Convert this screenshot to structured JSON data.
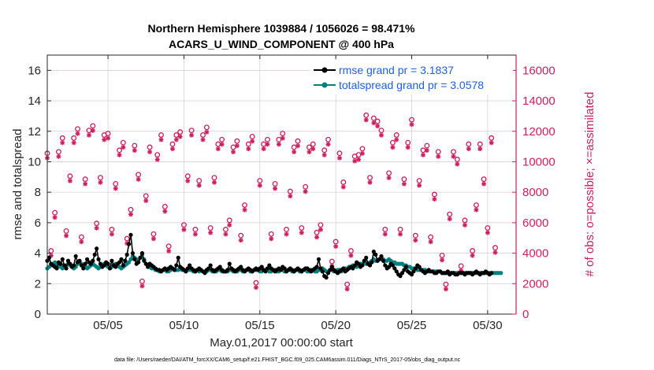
{
  "chart_data": {
    "type": "line",
    "title_line1": "Northern Hemisphere 1039884 / 1056026 = 98.471%",
    "title_line2": "ACARS_U_WIND_COMPONENT @ 400 hPa",
    "xlabel": "May.01,2017 00:00:00 start",
    "ylabel_left": "rmse and totalspread",
    "ylabel_right": "# of obs: o=possible; ×=assimilated",
    "footnote": "data file: /Users/raeder/DAI/ATM_forcXX/CAM6_setup/f.e21.FHIST_BGC.f09_025.CAM6assim.011/Diags_NTrS_2017-05/obs_diag_output.nc",
    "xlim": [
      1,
      31.875
    ],
    "x_ticks": [
      {
        "value": 5,
        "label": "05/05"
      },
      {
        "value": 10,
        "label": "05/10"
      },
      {
        "value": 15,
        "label": "05/15"
      },
      {
        "value": 20,
        "label": "05/20"
      },
      {
        "value": 25,
        "label": "05/25"
      },
      {
        "value": 30,
        "label": "05/30"
      }
    ],
    "ylim_left": [
      0,
      17
    ],
    "yticks_left": [
      "0",
      "2",
      "4",
      "6",
      "8",
      "10",
      "12",
      "14",
      "16"
    ],
    "ylim_right": [
      0,
      17000
    ],
    "yticks_right": [
      "0",
      "2000",
      "4000",
      "6000",
      "8000",
      "10000",
      "12000",
      "14000",
      "16000"
    ],
    "grid": true,
    "legend_position": "top-right",
    "colors": {
      "rmse": "#000000",
      "totalspread": "#008080",
      "obs": "#cc1f5a",
      "legend_text": "#1f5fd9",
      "grid": "#d9c7d1"
    },
    "series": [
      {
        "name": "rmse grand pr = 3.1837",
        "key": "rmse",
        "samples_per_day": 8,
        "values": [
          3.5,
          3.7,
          3.3,
          3.2,
          3.1,
          3.0,
          3.4,
          3.3,
          3.6,
          3.2,
          3.0,
          3.5,
          3.3,
          3.1,
          3.2,
          3.8,
          3.4,
          3.5,
          3.2,
          3.0,
          3.3,
          3.6,
          3.4,
          3.3,
          3.5,
          3.9,
          4.3,
          3.6,
          3.3,
          3.1,
          3.2,
          3.4,
          3.3,
          3.0,
          3.5,
          3.2,
          3.1,
          3.3,
          3.4,
          3.6,
          3.2,
          3.5,
          3.9,
          4.6,
          5.2,
          4.0,
          3.6,
          3.3,
          3.4,
          3.7,
          4.0,
          3.5,
          3.3,
          3.1,
          3.3,
          3.2,
          3.1,
          3.0,
          2.9,
          2.9,
          2.8,
          2.9,
          3.0,
          2.9,
          3.0,
          3.1,
          3.0,
          2.9,
          3.2,
          3.7,
          3.1,
          3.0,
          2.9,
          2.8,
          3.0,
          3.2,
          3.0,
          2.9,
          2.8,
          2.9,
          3.0,
          2.9,
          2.8,
          2.7,
          2.9,
          3.0,
          3.2,
          2.9,
          2.8,
          2.9,
          3.0,
          3.1,
          2.9,
          2.8,
          2.8,
          2.9,
          3.3,
          3.0,
          2.9,
          2.8,
          2.9,
          3.0,
          3.1,
          2.9,
          2.8,
          2.9,
          3.0,
          2.9,
          2.8,
          2.9,
          3.0,
          2.9,
          3.0,
          3.1,
          2.9,
          2.8,
          3.0,
          3.2,
          3.0,
          2.9,
          2.8,
          2.9,
          3.0,
          2.9,
          3.1,
          3.0,
          2.8,
          2.9,
          3.0,
          2.9,
          2.8,
          2.9,
          3.0,
          2.9,
          2.8,
          2.9,
          3.0,
          3.0,
          2.9,
          2.8,
          2.9,
          3.0,
          3.1,
          3.6,
          3.0,
          2.8,
          2.5,
          2.4,
          2.7,
          2.9,
          3.1,
          2.9,
          2.8,
          2.7,
          2.8,
          2.9,
          3.0,
          2.8,
          2.9,
          3.0,
          3.1,
          3.0,
          3.2,
          3.4,
          3.3,
          3.1,
          3.2,
          3.5,
          3.7,
          3.3,
          3.2,
          3.4,
          4.1,
          3.9,
          3.5,
          3.6,
          3.8,
          3.5,
          3.2,
          3.0,
          3.1,
          3.3,
          3.2,
          3.0,
          2.8,
          2.6,
          2.5,
          2.7,
          2.9,
          3.1,
          2.8,
          2.7,
          2.6,
          2.8,
          3.0,
          3.2,
          3.1,
          2.9,
          2.8,
          2.7,
          2.8,
          2.9,
          2.8,
          2.8,
          2.7,
          2.7,
          2.8,
          2.8,
          2.7,
          2.7,
          2.7,
          2.8,
          2.6,
          2.7,
          2.7,
          2.6,
          2.6,
          2.7,
          2.7,
          2.7,
          2.6,
          2.7,
          2.7,
          2.7,
          2.6,
          2.7,
          2.8,
          2.7,
          2.6,
          2.7,
          2.7,
          2.8,
          2.7,
          2.6,
          2.7
        ]
      },
      {
        "name": "totalspread grand pr = 3.0578",
        "key": "totalspread",
        "samples_per_day": 8,
        "values": [
          3.0,
          3.1,
          3.2,
          3.3,
          3.4,
          3.3,
          3.2,
          3.1,
          3.0,
          3.1,
          3.2,
          3.3,
          3.2,
          3.1,
          3.0,
          3.1,
          3.3,
          3.4,
          3.3,
          3.2,
          3.1,
          3.0,
          3.1,
          3.2,
          3.3,
          3.2,
          3.1,
          3.0,
          3.1,
          3.2,
          3.3,
          3.2,
          3.1,
          3.0,
          3.1,
          3.2,
          3.3,
          3.2,
          3.1,
          3.0,
          3.1,
          3.2,
          3.3,
          3.4,
          3.6,
          3.8,
          3.7,
          3.6,
          3.5,
          3.7,
          3.9,
          3.6,
          3.3,
          3.2,
          3.1,
          3.0,
          3.0,
          2.9,
          2.9,
          2.8,
          2.8,
          2.9,
          2.9,
          2.8,
          2.8,
          2.9,
          3.0,
          2.9,
          2.9,
          2.9,
          3.0,
          2.9,
          2.9,
          2.8,
          2.9,
          2.9,
          2.9,
          2.8,
          2.8,
          2.9,
          2.8,
          2.9,
          2.8,
          2.8,
          2.8,
          2.9,
          2.9,
          2.8,
          2.8,
          2.8,
          2.9,
          2.9,
          2.8,
          2.8,
          2.8,
          2.8,
          2.9,
          2.9,
          2.8,
          2.8,
          2.8,
          2.9,
          2.9,
          2.8,
          2.8,
          2.9,
          2.9,
          2.8,
          2.8,
          2.9,
          2.9,
          2.9,
          2.8,
          2.8,
          2.9,
          2.9,
          2.9,
          2.8,
          2.8,
          2.9,
          2.9,
          2.8,
          2.8,
          2.9,
          2.9,
          2.8,
          2.8,
          2.9,
          2.9,
          2.8,
          2.8,
          2.9,
          2.9,
          2.8,
          2.8,
          2.9,
          2.9,
          2.8,
          2.8,
          2.9,
          2.9,
          2.8,
          2.8,
          2.9,
          2.9,
          3.0,
          2.9,
          2.8,
          2.8,
          2.9,
          2.9,
          2.8,
          2.8,
          2.9,
          2.9,
          2.8,
          2.9,
          3.0,
          3.0,
          3.1,
          3.1,
          3.2,
          3.2,
          3.1,
          3.2,
          3.3,
          3.3,
          3.4,
          3.3,
          3.3,
          3.4,
          3.5,
          3.6,
          3.5,
          3.5,
          3.6,
          3.7,
          3.6,
          3.5,
          3.5,
          3.6,
          3.5,
          3.4,
          3.4,
          3.3,
          3.3,
          3.3,
          3.3,
          3.2,
          3.2,
          3.1,
          3.1,
          3.0,
          3.0,
          3.0,
          2.9,
          2.9,
          2.9,
          2.9,
          2.9,
          2.8,
          2.8,
          2.8,
          2.8,
          2.8,
          2.8,
          2.8,
          2.8,
          2.7,
          2.7,
          2.7,
          2.7,
          2.7,
          2.7,
          2.7,
          2.7,
          2.7,
          2.7,
          2.7,
          2.7,
          2.7,
          2.7,
          2.7,
          2.7,
          2.7,
          2.7,
          2.7,
          2.7,
          2.7,
          2.7,
          2.7,
          2.7,
          2.7,
          2.7,
          2.7,
          2.7,
          2.7,
          2.7,
          2.7,
          2.7
        ]
      }
    ],
    "obs_counts": {
      "x_start": 1,
      "samples_per_day": 4,
      "possible": [
        10400,
        4000,
        6500,
        10500,
        11400,
        5300,
        8900,
        11400,
        12000,
        4900,
        8700,
        11900,
        12200,
        5800,
        8800,
        11600,
        11700,
        5400,
        8400,
        10600,
        11100,
        4800,
        6700,
        10900,
        9000,
        2000,
        7600,
        10800,
        5100,
        10300,
        11600,
        6900,
        4300,
        11000,
        11600,
        11800,
        5700,
        8900,
        11900,
        5400,
        8600,
        11600,
        12100,
        5500,
        8800,
        11000,
        11300,
        5400,
        6000,
        10800,
        11200,
        5000,
        7000,
        11000,
        11500,
        1900,
        8600,
        11000,
        11300,
        5100,
        8400,
        11300,
        11700,
        5400,
        7900,
        10800,
        11200,
        5500,
        8200,
        10800,
        11000,
        5200,
        5700,
        10600,
        11300,
        3300,
        4600,
        10400,
        8500,
        1800,
        4000,
        10200,
        10300,
        10700,
        12900,
        8800,
        12700,
        12500,
        11900,
        5400,
        9100,
        11100,
        11600,
        5400,
        8700,
        11100,
        12600,
        5000,
        8600,
        10600,
        10900,
        4900,
        7700,
        10500,
        3700,
        1800,
        6400,
        10500,
        10000,
        3000,
        6000,
        11000,
        4000,
        7000,
        11000,
        8700,
        5500,
        11400,
        4200
      ]
    }
  }
}
